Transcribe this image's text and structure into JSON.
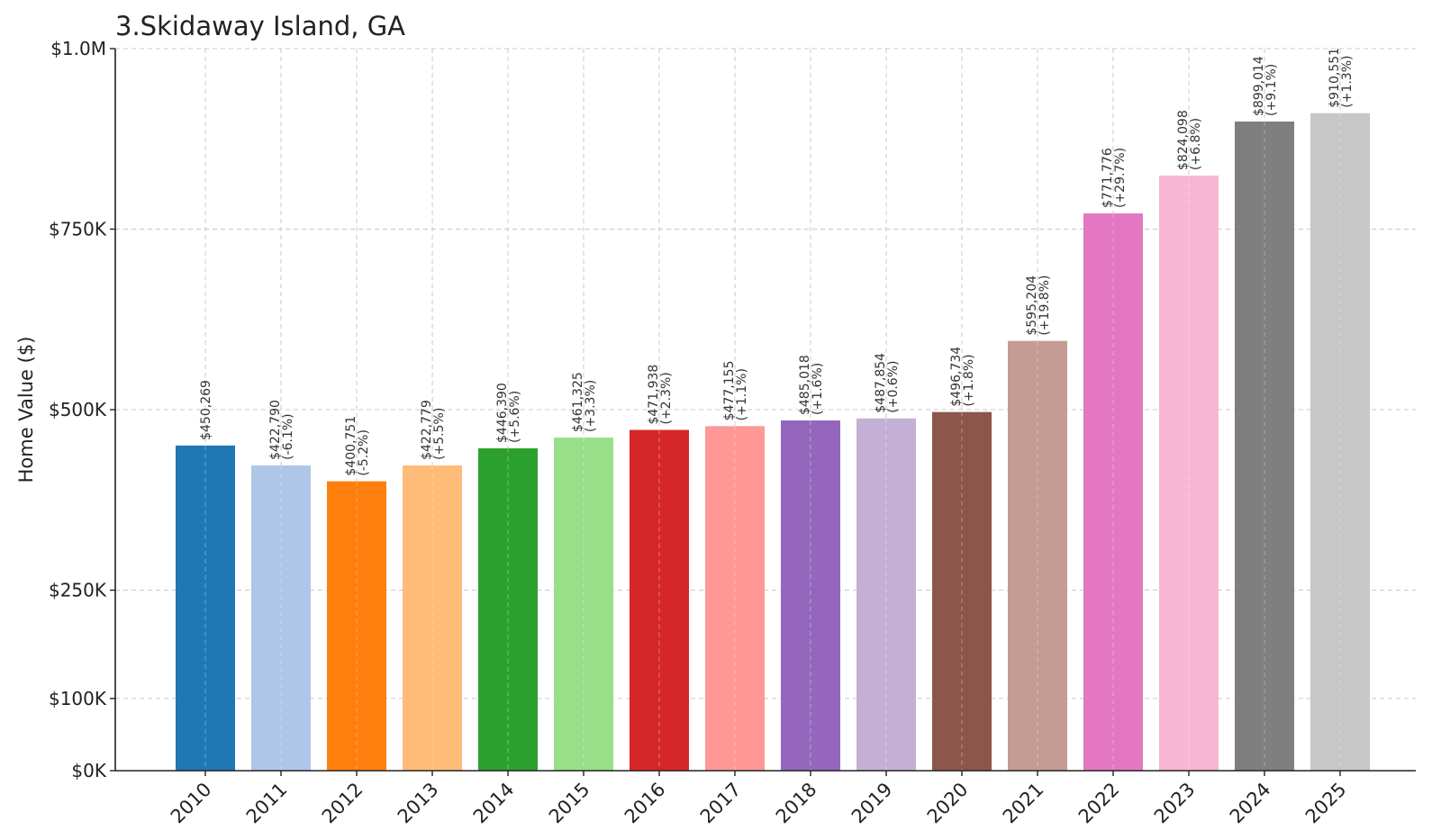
{
  "chart_data": {
    "type": "bar",
    "title": "3.Skidaway Island, GA",
    "ylabel": "Home Value ($)",
    "xlabel": "",
    "ylim": [
      0,
      1000000
    ],
    "grid": true,
    "categories": [
      "2010",
      "2011",
      "2012",
      "2013",
      "2014",
      "2015",
      "2016",
      "2017",
      "2018",
      "2019",
      "2020",
      "2021",
      "2022",
      "2023",
      "2024",
      "2025"
    ],
    "values": [
      450269,
      422790,
      400751,
      422779,
      446390,
      461325,
      471938,
      477155,
      485018,
      487854,
      496734,
      595204,
      771776,
      824098,
      899014,
      910551
    ],
    "value_labels": [
      "$450,269",
      "$422,790",
      "$400,751",
      "$422,779",
      "$446,390",
      "$461,325",
      "$471,938",
      "$477,155",
      "$485,018",
      "$487,854",
      "$496,734",
      "$595,204",
      "$771,776",
      "$824,098",
      "$899,014",
      "$910,551"
    ],
    "change_labels": [
      "",
      "(-6.1%)",
      "(-5.2%)",
      "(+5.5%)",
      "(+5.6%)",
      "(+3.3%)",
      "(+2.3%)",
      "(+1.1%)",
      "(+1.6%)",
      "(+0.6%)",
      "(+1.8%)",
      "(+19.8%)",
      "(+29.7%)",
      "(+6.8%)",
      "(+9.1%)",
      "(+1.3%)"
    ],
    "colors": [
      "#1f77b4",
      "#aec7e8",
      "#ff7f0e",
      "#ffbb78",
      "#2ca02c",
      "#98df8a",
      "#d62728",
      "#ff9896",
      "#9467bd",
      "#c5b0d5",
      "#8c564b",
      "#c49c94",
      "#e377c2",
      "#f7b6d2",
      "#7f7f7f",
      "#c7c7c7"
    ],
    "y_ticks": [
      {
        "value": 0,
        "label": "$0K"
      },
      {
        "value": 100000,
        "label": "$100K"
      },
      {
        "value": 250000,
        "label": "$250K"
      },
      {
        "value": 500000,
        "label": "$500K"
      },
      {
        "value": 750000,
        "label": "$750K"
      },
      {
        "value": 1000000,
        "label": "$1.0M"
      }
    ]
  }
}
